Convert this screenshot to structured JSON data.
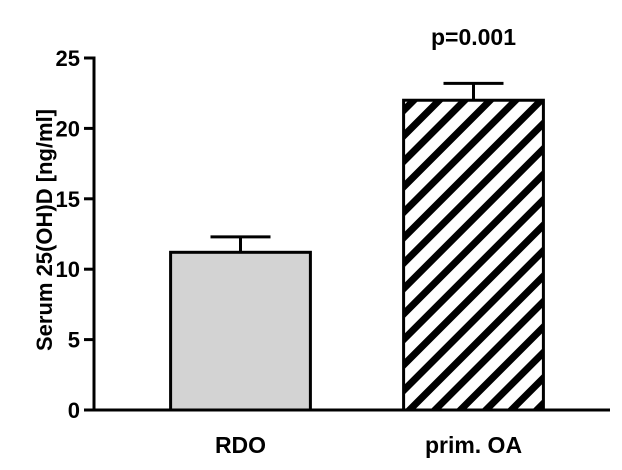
{
  "chart_data": {
    "type": "bar",
    "title": "",
    "xlabel": "",
    "ylabel": "Serum 25(OH)D [ng/ml]",
    "ylim": [
      0,
      25
    ],
    "yticks": [
      0,
      5,
      10,
      15,
      20,
      25
    ],
    "categories": [
      "RDO",
      "prim. OA"
    ],
    "values": [
      11.2,
      22.0
    ],
    "error_upper": [
      12.3,
      23.2
    ],
    "bar_styles": [
      {
        "fill": "#d3d3d3",
        "pattern": "solid"
      },
      {
        "fill": "#ffffff",
        "pattern": "diagonal-hatch"
      }
    ],
    "annotations": [
      {
        "text": "p=0.001",
        "category": "prim. OA"
      }
    ],
    "grid": false,
    "legend": "none"
  }
}
